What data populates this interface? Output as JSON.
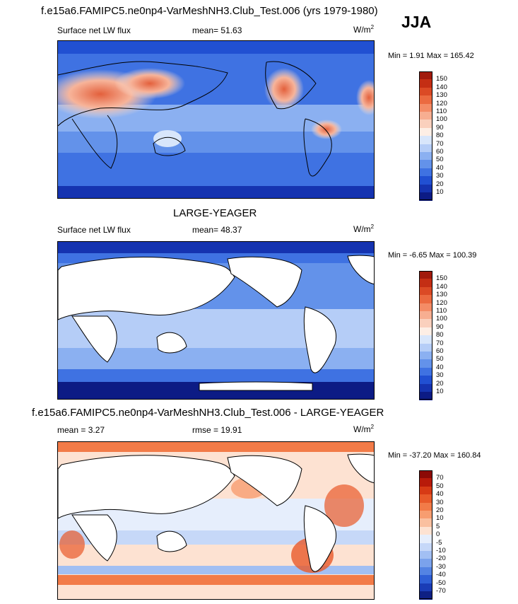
{
  "header": {
    "title": "f.e15a6.FAMIPC5.ne0np4-VarMeshNH3.Club_Test.006 (yrs 1979-1980)",
    "season": "JJA"
  },
  "panels": [
    {
      "id": "model",
      "left_label": "Surface net LW flux",
      "center_label": "mean=  51.63",
      "units": "W/m",
      "units_sup": "2",
      "minmax": "Min =  1.91 Max = 165.42",
      "colorbar_labels": [
        "150",
        "140",
        "130",
        "120",
        "110",
        "100",
        "90",
        "80",
        "70",
        "60",
        "50",
        "40",
        "30",
        "20",
        "10"
      ],
      "colorbar_colors": [
        "#a11a0c",
        "#c42e14",
        "#db4a25",
        "#eb6a40",
        "#f48c66",
        "#f7ae91",
        "#fad0bd",
        "#fdeee5",
        "#d8e6fb",
        "#b5cdf7",
        "#8bb0f1",
        "#6392ea",
        "#3f72e2",
        "#2150d2",
        "#1533b0",
        "#0c1b85"
      ]
    },
    {
      "id": "obs",
      "top_title": "LARGE-YEAGER",
      "left_label": "Surface net LW flux",
      "center_label": "mean=  48.37",
      "units": "W/m",
      "units_sup": "2",
      "minmax": "Min =  -6.65 Max = 100.39",
      "colorbar_labels": [
        "150",
        "140",
        "130",
        "120",
        "110",
        "100",
        "90",
        "80",
        "70",
        "60",
        "50",
        "40",
        "30",
        "20",
        "10"
      ],
      "colorbar_colors": [
        "#a11a0c",
        "#c42e14",
        "#db4a25",
        "#eb6a40",
        "#f48c66",
        "#f7ae91",
        "#fad0bd",
        "#fdeee5",
        "#d8e6fb",
        "#b5cdf7",
        "#8bb0f1",
        "#6392ea",
        "#3f72e2",
        "#2150d2",
        "#1533b0",
        "#0c1b85"
      ]
    },
    {
      "id": "diff",
      "top_title": "f.e15a6.FAMIPC5.ne0np4-VarMeshNH3.Club_Test.006 - LARGE-YEAGER",
      "left_label": "mean =  3.27",
      "center_label": "rmse =  19.91",
      "units": "W/m",
      "units_sup": "2",
      "minmax": "Min = -37.20 Max = 160.84",
      "colorbar_labels": [
        "70",
        "50",
        "40",
        "30",
        "20",
        "10",
        "5",
        "0",
        "-5",
        "-10",
        "-20",
        "-30",
        "-40",
        "-50",
        "-70"
      ],
      "colorbar_colors": [
        "#8c0a06",
        "#b81a0a",
        "#d73a15",
        "#e85a2a",
        "#f27b48",
        "#f79d70",
        "#fac0a0",
        "#fde2d2",
        "#e6eefc",
        "#c6d8f8",
        "#a2bff3",
        "#7ba2ec",
        "#5483e3",
        "#2f5fd6",
        "#1a3cb6",
        "#0e2084"
      ]
    }
  ]
}
